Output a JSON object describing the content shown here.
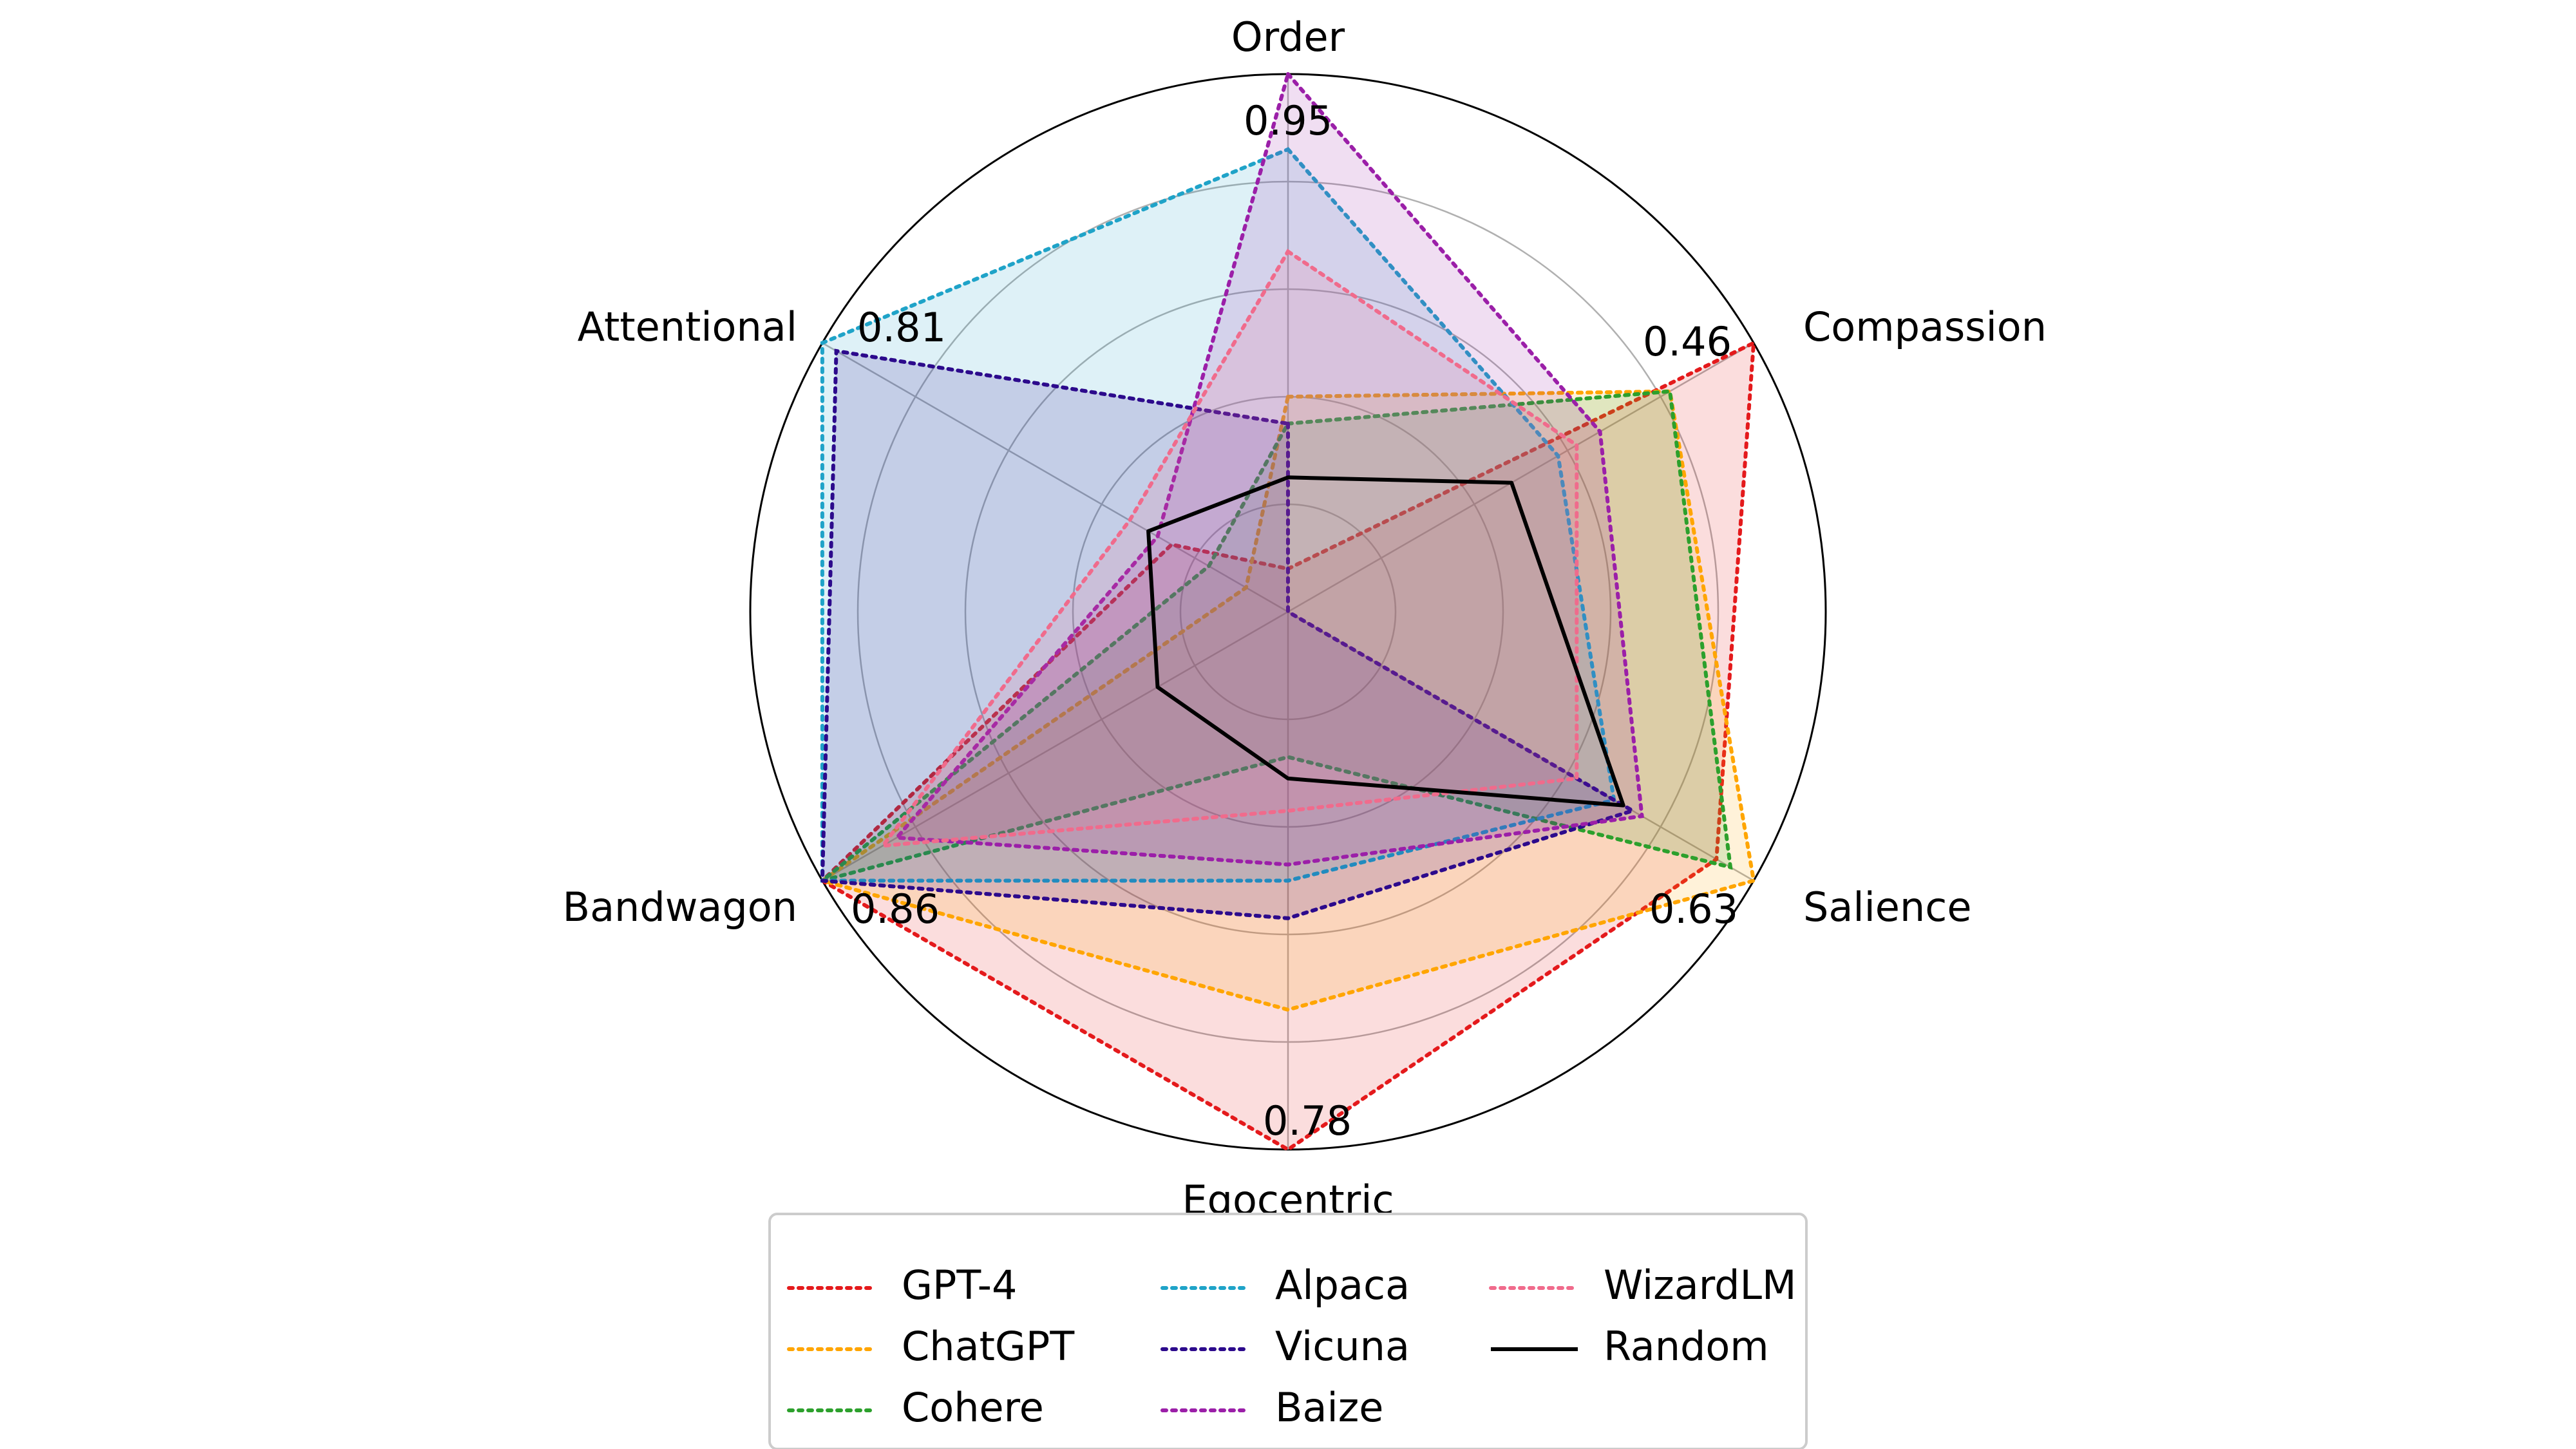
{
  "chart_data": {
    "type": "radar",
    "axes": [
      {
        "label": "Order",
        "max_label": "0.95"
      },
      {
        "label": "Compassion",
        "max_label": "0.46"
      },
      {
        "label": "Salience",
        "max_label": "0.63"
      },
      {
        "label": "Egocentric",
        "max_label": "0.78"
      },
      {
        "label": "Bandwagon",
        "max_label": "0.86"
      },
      {
        "label": "Attentional",
        "max_label": "0.81"
      }
    ],
    "grid": true,
    "legend_position": "bottom-center",
    "series": [
      {
        "name": "GPT-4",
        "color": "#e41a1c",
        "style": "dotted",
        "values": [
          0.08,
          1.0,
          0.92,
          1.0,
          1.0,
          0.25
        ]
      },
      {
        "name": "ChatGPT",
        "color": "#ffa500",
        "style": "dotted",
        "values": [
          0.4,
          0.82,
          1.0,
          0.74,
          1.0,
          0.09
        ]
      },
      {
        "name": "Cohere",
        "color": "#2ca02c",
        "style": "dotted",
        "values": [
          0.35,
          0.82,
          0.95,
          0.27,
          1.0,
          0.17
        ]
      },
      {
        "name": "Alpaca",
        "color": "#1fa3c8",
        "style": "dotted",
        "values": [
          0.86,
          0.58,
          0.7,
          0.5,
          1.0,
          1.0
        ]
      },
      {
        "name": "Vicuna",
        "color": "#2c0a8c",
        "style": "dotted",
        "values": [
          0.35,
          0.0,
          0.74,
          0.57,
          1.0,
          0.97
        ]
      },
      {
        "name": "Baize",
        "color": "#9b1fa8",
        "style": "dotted",
        "values": [
          1.0,
          0.67,
          0.76,
          0.47,
          0.84,
          0.28
        ]
      },
      {
        "name": "WizardLM",
        "color": "#f06b8c",
        "style": "dotted",
        "values": [
          0.67,
          0.62,
          0.62,
          0.37,
          0.87,
          0.34
        ]
      },
      {
        "name": "Random",
        "color": "#000000",
        "style": "solid",
        "values": [
          0.25,
          0.48,
          0.72,
          0.31,
          0.28,
          0.3
        ]
      }
    ]
  }
}
